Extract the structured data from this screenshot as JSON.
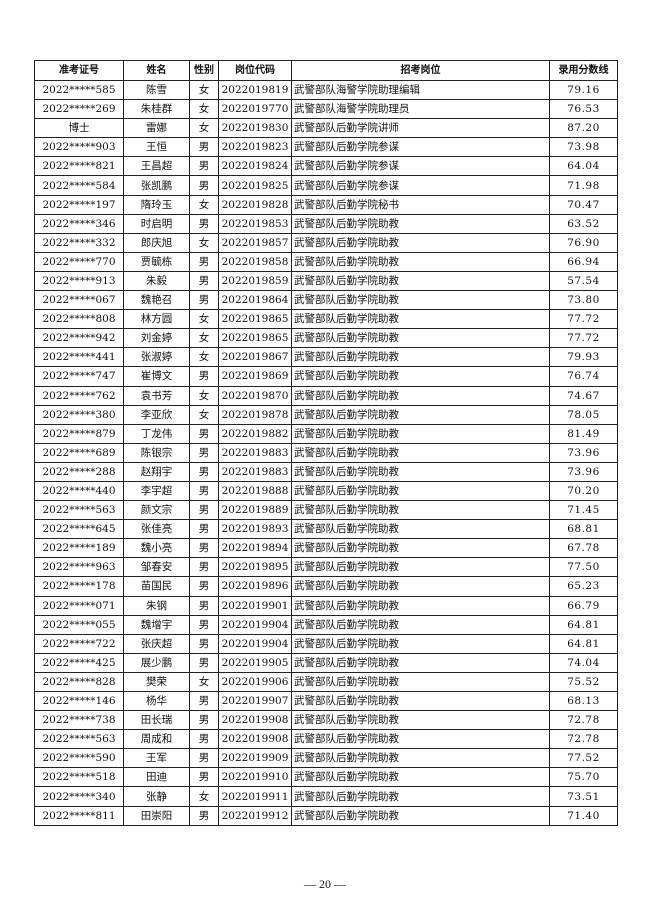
{
  "table": {
    "headers": [
      "准考证号",
      "姓名",
      "性别",
      "岗位代码",
      "招考岗位",
      "录用分数线"
    ],
    "rows": [
      [
        "2022*****585",
        "陈雪",
        "女",
        "2022019819",
        "武警部队海警学院助理编辑",
        "79.16"
      ],
      [
        "2022*****269",
        "朱桂群",
        "女",
        "2022019770",
        "武警部队海警学院助理员",
        "76.53"
      ],
      [
        "博士",
        "雷娜",
        "女",
        "2022019830",
        "武警部队后勤学院讲师",
        "87.20"
      ],
      [
        "2022*****903",
        "王恒",
        "男",
        "2022019823",
        "武警部队后勤学院参谋",
        "73.98"
      ],
      [
        "2022*****821",
        "王昌超",
        "男",
        "2022019824",
        "武警部队后勤学院参谋",
        "64.04"
      ],
      [
        "2022*****584",
        "张凯鹏",
        "男",
        "2022019825",
        "武警部队后勤学院参谋",
        "71.98"
      ],
      [
        "2022*****197",
        "隋玲玉",
        "女",
        "2022019828",
        "武警部队后勤学院秘书",
        "70.47"
      ],
      [
        "2022*****346",
        "时启明",
        "男",
        "2022019853",
        "武警部队后勤学院助教",
        "63.52"
      ],
      [
        "2022*****332",
        "郎庆旭",
        "女",
        "2022019857",
        "武警部队后勤学院助教",
        "76.90"
      ],
      [
        "2022*****770",
        "贾毓栋",
        "男",
        "2022019858",
        "武警部队后勤学院助教",
        "66.94"
      ],
      [
        "2022*****913",
        "朱毅",
        "男",
        "2022019859",
        "武警部队后勤学院助教",
        "57.54"
      ],
      [
        "2022*****067",
        "魏艳召",
        "男",
        "2022019864",
        "武警部队后勤学院助教",
        "73.80"
      ],
      [
        "2022*****808",
        "林方圆",
        "女",
        "2022019865",
        "武警部队后勤学院助教",
        "77.72"
      ],
      [
        "2022*****942",
        "刘金婷",
        "女",
        "2022019865",
        "武警部队后勤学院助教",
        "77.72"
      ],
      [
        "2022*****441",
        "张淑婷",
        "女",
        "2022019867",
        "武警部队后勤学院助教",
        "79.93"
      ],
      [
        "2022*****747",
        "崔博文",
        "男",
        "2022019869",
        "武警部队后勤学院助教",
        "76.74"
      ],
      [
        "2022*****762",
        "袁书芳",
        "女",
        "2022019870",
        "武警部队后勤学院助教",
        "74.67"
      ],
      [
        "2022*****380",
        "李亚欣",
        "女",
        "2022019878",
        "武警部队后勤学院助教",
        "78.05"
      ],
      [
        "2022*****879",
        "丁龙伟",
        "男",
        "2022019882",
        "武警部队后勤学院助教",
        "81.49"
      ],
      [
        "2022*****689",
        "陈银宗",
        "男",
        "2022019883",
        "武警部队后勤学院助教",
        "73.96"
      ],
      [
        "2022*****288",
        "赵翔宇",
        "男",
        "2022019883",
        "武警部队后勤学院助教",
        "73.96"
      ],
      [
        "2022*****440",
        "李宇超",
        "男",
        "2022019888",
        "武警部队后勤学院助教",
        "70.20"
      ],
      [
        "2022*****563",
        "颜文宗",
        "男",
        "2022019889",
        "武警部队后勤学院助教",
        "71.45"
      ],
      [
        "2022*****645",
        "张佳亮",
        "男",
        "2022019893",
        "武警部队后勤学院助教",
        "68.81"
      ],
      [
        "2022*****189",
        "魏小亮",
        "男",
        "2022019894",
        "武警部队后勤学院助教",
        "67.78"
      ],
      [
        "2022*****963",
        "邹春安",
        "男",
        "2022019895",
        "武警部队后勤学院助教",
        "77.50"
      ],
      [
        "2022*****178",
        "苗国民",
        "男",
        "2022019896",
        "武警部队后勤学院助教",
        "65.23"
      ],
      [
        "2022*****071",
        "朱钢",
        "男",
        "2022019901",
        "武警部队后勤学院助教",
        "66.79"
      ],
      [
        "2022*****055",
        "魏增宇",
        "男",
        "2022019904",
        "武警部队后勤学院助教",
        "64.81"
      ],
      [
        "2022*****722",
        "张庆超",
        "男",
        "2022019904",
        "武警部队后勤学院助教",
        "64.81"
      ],
      [
        "2022*****425",
        "展少鹏",
        "男",
        "2022019905",
        "武警部队后勤学院助教",
        "74.04"
      ],
      [
        "2022*****828",
        "樊荣",
        "女",
        "2022019906",
        "武警部队后勤学院助教",
        "75.52"
      ],
      [
        "2022*****146",
        "杨华",
        "男",
        "2022019907",
        "武警部队后勤学院助教",
        "68.13"
      ],
      [
        "2022*****738",
        "田长瑞",
        "男",
        "2022019908",
        "武警部队后勤学院助教",
        "72.78"
      ],
      [
        "2022*****563",
        "周成和",
        "男",
        "2022019908",
        "武警部队后勤学院助教",
        "72.78"
      ],
      [
        "2022*****590",
        "王军",
        "男",
        "2022019909",
        "武警部队后勤学院助教",
        "77.52"
      ],
      [
        "2022*****518",
        "田迪",
        "男",
        "2022019910",
        "武警部队后勤学院助教",
        "75.70"
      ],
      [
        "2022*****340",
        "张静",
        "女",
        "2022019911",
        "武警部队后勤学院助教",
        "73.51"
      ],
      [
        "2022*****811",
        "田崇阳",
        "男",
        "2022019912",
        "武警部队后勤学院助教",
        "71.40"
      ]
    ]
  },
  "footer": {
    "page_number": "— 20 —"
  }
}
